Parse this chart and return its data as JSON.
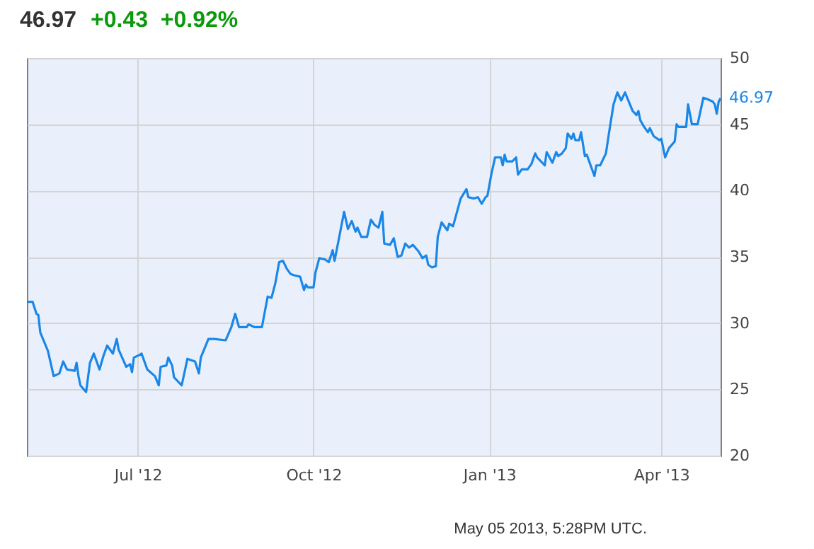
{
  "chart_data": {
    "type": "line",
    "title": "46.97",
    "subtitle": "+0.43  +0.92%",
    "annotations": [
      {
        "text": "46.97",
        "x": "2013-05-02",
        "y": 46.97
      },
      "May 05 2013, 5:28PM UTC."
    ],
    "x": [
      "2012-05-04",
      "2012-05-07",
      "2012-05-09",
      "2012-05-10",
      "2012-05-11",
      "2012-05-15",
      "2012-05-18",
      "2012-05-21",
      "2012-05-23",
      "2012-05-25",
      "2012-05-29",
      "2012-05-30",
      "2012-05-31",
      "2012-06-01",
      "2012-06-04",
      "2012-06-06",
      "2012-06-08",
      "2012-06-11",
      "2012-06-13",
      "2012-06-15",
      "2012-06-18",
      "2012-06-20",
      "2012-06-21",
      "2012-06-25",
      "2012-06-27",
      "2012-06-28",
      "2012-06-29",
      "2012-07-02",
      "2012-07-03",
      "2012-07-06",
      "2012-07-10",
      "2012-07-12",
      "2012-07-13",
      "2012-07-16",
      "2012-07-17",
      "2012-07-19",
      "2012-07-20",
      "2012-07-24",
      "2012-07-27",
      "2012-07-31",
      "2012-08-02",
      "2012-08-03",
      "2012-08-07",
      "2012-08-10",
      "2012-08-16",
      "2012-08-19",
      "2012-08-21",
      "2012-08-23",
      "2012-08-27",
      "2012-08-28",
      "2012-08-31",
      "2012-09-04",
      "2012-09-07",
      "2012-09-09",
      "2012-09-11",
      "2012-09-13",
      "2012-09-15",
      "2012-09-17",
      "2012-09-19",
      "2012-09-21",
      "2012-09-24",
      "2012-09-26",
      "2012-09-27",
      "2012-09-28",
      "2012-10-01",
      "2012-10-02",
      "2012-10-04",
      "2012-10-07",
      "2012-10-09",
      "2012-10-11",
      "2012-10-12",
      "2012-10-15",
      "2012-10-17",
      "2012-10-19",
      "2012-10-21",
      "2012-10-23",
      "2012-10-24",
      "2012-10-26",
      "2012-10-29",
      "2012-10-31",
      "2012-11-02",
      "2012-11-04",
      "2012-11-06",
      "2012-11-07",
      "2012-11-10",
      "2012-11-12",
      "2012-11-14",
      "2012-11-16",
      "2012-11-18",
      "2012-11-20",
      "2012-11-22",
      "2012-11-25",
      "2012-11-27",
      "2012-11-29",
      "2012-11-30",
      "2012-12-02",
      "2012-12-04",
      "2012-12-05",
      "2012-12-07",
      "2012-12-10",
      "2012-12-11",
      "2012-12-13",
      "2012-12-17",
      "2012-12-20",
      "2012-12-21",
      "2012-12-24",
      "2012-12-26",
      "2012-12-28",
      "2012-12-30",
      "2012-12-31",
      "2013-01-02",
      "2013-01-04",
      "2013-01-07",
      "2013-01-08",
      "2013-01-09",
      "2013-01-10",
      "2013-01-13",
      "2013-01-15",
      "2013-01-16",
      "2013-01-18",
      "2013-01-21",
      "2013-01-23",
      "2013-01-25",
      "2013-01-26",
      "2013-01-30",
      "2013-01-31",
      "2013-02-03",
      "2013-02-05",
      "2013-02-06",
      "2013-02-08",
      "2013-02-10",
      "2013-02-11",
      "2013-02-13",
      "2013-02-14",
      "2013-02-15",
      "2013-02-17",
      "2013-02-18",
      "2013-02-20",
      "2013-02-21",
      "2013-02-23",
      "2013-02-25",
      "2013-02-26",
      "2013-02-28",
      "2013-03-03",
      "2013-03-05",
      "2013-03-07",
      "2013-03-09",
      "2013-03-11",
      "2013-03-13",
      "2013-03-15",
      "2013-03-17",
      "2013-03-19",
      "2013-03-20",
      "2013-03-21",
      "2013-03-23",
      "2013-03-25",
      "2013-03-26",
      "2013-03-28",
      "2013-03-31",
      "2013-04-01",
      "2013-04-03",
      "2013-04-05",
      "2013-04-08",
      "2013-04-09",
      "2013-04-10",
      "2013-04-14",
      "2013-04-15",
      "2013-04-17",
      "2013-04-20",
      "2013-04-23",
      "2013-04-25",
      "2013-04-28",
      "2013-04-29",
      "2013-04-30",
      "2013-05-01",
      "2013-05-02"
    ],
    "series": [
      {
        "color": "#1a87e8",
        "values": [
          31.6,
          31.6,
          30.7,
          30.6,
          29.3,
          27.9,
          26.0,
          26.2,
          27.1,
          26.5,
          26.4,
          27.0,
          26.0,
          25.3,
          24.8,
          27.0,
          27.7,
          26.5,
          27.5,
          28.3,
          27.7,
          28.8,
          28.0,
          26.7,
          26.9,
          26.3,
          27.4,
          27.6,
          27.7,
          26.5,
          26.0,
          25.3,
          26.7,
          26.8,
          27.4,
          26.8,
          25.9,
          25.3,
          27.3,
          27.1,
          26.2,
          27.4,
          28.8,
          28.8,
          28.7,
          29.7,
          30.7,
          29.7,
          29.7,
          29.9,
          29.7,
          29.7,
          32.0,
          31.9,
          33.0,
          34.6,
          34.7,
          34.1,
          33.7,
          33.6,
          33.5,
          32.5,
          32.9,
          32.7,
          32.7,
          33.8,
          34.9,
          34.8,
          34.6,
          35.5,
          34.7,
          36.9,
          38.4,
          37.1,
          37.7,
          36.9,
          37.2,
          36.5,
          36.5,
          37.8,
          37.4,
          37.2,
          38.4,
          36.0,
          35.9,
          36.4,
          35.0,
          35.1,
          36.0,
          35.7,
          35.9,
          35.4,
          34.9,
          35.1,
          34.4,
          34.2,
          34.3,
          36.5,
          37.6,
          37.0,
          37.5,
          37.3,
          39.4,
          40.1,
          39.5,
          39.4,
          39.5,
          39.0,
          39.5,
          39.6,
          41.2,
          42.5,
          42.5,
          41.9,
          42.7,
          42.2,
          42.2,
          42.5,
          41.2,
          41.6,
          41.6,
          42.0,
          42.8,
          42.5,
          41.9,
          42.9,
          42.1,
          42.9,
          42.6,
          42.8,
          43.2,
          44.3,
          43.9,
          44.3,
          43.8,
          43.8,
          44.4,
          42.6,
          42.7,
          41.9,
          41.1,
          41.9,
          41.9,
          42.8,
          44.7,
          46.5,
          47.4,
          46.8,
          47.4,
          46.7,
          46.0,
          45.7,
          46.0,
          45.3,
          44.8,
          44.4,
          44.7,
          44.1,
          43.8,
          43.9,
          42.5,
          43.2,
          43.7,
          45.0,
          44.8,
          44.8,
          46.5,
          45.0,
          45.0,
          47.0,
          46.9,
          46.7,
          46.5,
          45.8,
          46.7,
          46.97
        ]
      }
    ],
    "xlim": [
      "2012-05-04",
      "2013-05-02"
    ],
    "xticks": [
      {
        "value": "2012-07-01",
        "label": "Jul '12"
      },
      {
        "value": "2012-10-01",
        "label": "Oct '12"
      },
      {
        "value": "2013-01-01",
        "label": "Jan '13"
      },
      {
        "value": "2013-04-01",
        "label": "Apr '13"
      }
    ],
    "ylim": [
      20,
      50
    ],
    "yticks": [
      20,
      25,
      30,
      35,
      40,
      45,
      50
    ],
    "grid": true
  }
}
